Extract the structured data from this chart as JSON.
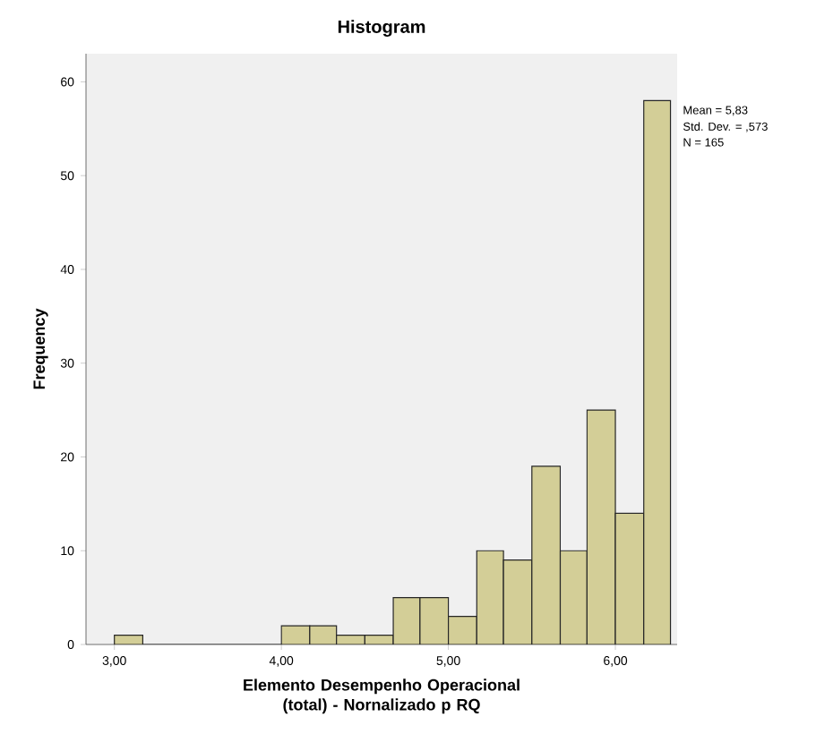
{
  "chart_data": {
    "type": "histogram",
    "title": "Histogram",
    "xlabel": "Elemento Desempenho Operacional (total) - Nornalizado p RQ",
    "ylabel": "Frequency",
    "bins": [
      3.0,
      3.17,
      4.0,
      4.17,
      4.33,
      4.5,
      4.67,
      4.83,
      5.0,
      5.17,
      5.33,
      5.5,
      5.67,
      5.83,
      6.0,
      6.17,
      6.33
    ],
    "values": [
      1,
      0,
      2,
      2,
      1,
      1,
      5,
      5,
      3,
      10,
      9,
      19,
      10,
      25,
      14,
      58
    ],
    "color": "#d3ce97",
    "xlim": [
      2.83,
      6.37
    ],
    "ylim": [
      0,
      63
    ],
    "xticks": [
      {
        "value": 3,
        "label": "3,00"
      },
      {
        "value": 4,
        "label": "4,00"
      },
      {
        "value": 5,
        "label": "5,00"
      },
      {
        "value": 6,
        "label": "6,00"
      }
    ],
    "yticks": [
      0,
      10,
      20,
      30,
      40,
      50,
      60
    ],
    "annotations": [
      "Mean = 5,83",
      "Std. Dev. = ,573",
      "N = 165"
    ]
  }
}
